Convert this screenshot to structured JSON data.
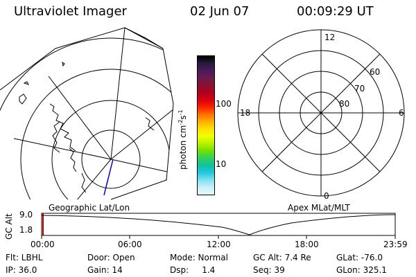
{
  "header": {
    "instrument": "Ultraviolet Imager",
    "date": "02 Jun 07",
    "time": "00:09:29 UT"
  },
  "colorbar": {
    "unit_label": "photon cm",
    "unit_exp1": "-2",
    "unit_s": "s",
    "unit_exp2": "-1",
    "tick_100": "100",
    "tick_10": "10",
    "colors": [
      "#000000",
      "#2a1a40",
      "#4a1a5a",
      "#6a1a50",
      "#8a1030",
      "#b00020",
      "#d80010",
      "#ff2000",
      "#ff7000",
      "#ffb000",
      "#ffe000",
      "#f0ff00",
      "#b8f000",
      "#70e000",
      "#30d060",
      "#10c0a0",
      "#20c8e0",
      "#80e0f0",
      "#c8f0f8",
      "#e8f8ff"
    ]
  },
  "maps": {
    "left_label": "Geographic Lat/Lon",
    "right_label": "Apex MLat/MLT",
    "mlt_labels": {
      "top": "12",
      "left": "18",
      "right": "6",
      "bottom": "0"
    },
    "mlat_labels": [
      "60",
      "70",
      "80"
    ]
  },
  "timeline": {
    "ylabel": "GC Alt",
    "ymax_label": "9.0",
    "ymin_label": "1.8",
    "ticks": [
      "00:00",
      "06:00",
      "12:00",
      "18:00",
      "23:59"
    ],
    "marker_color": "#c00000"
  },
  "status": {
    "filter": "Flt: LBHL",
    "ip": "IP: 36.0",
    "door": "Door: Open",
    "gain": "Gain: 14",
    "mode": "Mode: Normal",
    "dsp": "Dsp:     1.4",
    "gc_alt": "GC Alt: 7.4 Re",
    "seq": "Seq: 39",
    "glat": "GLat: -76.0",
    "glon": "GLon: 325.1"
  }
}
